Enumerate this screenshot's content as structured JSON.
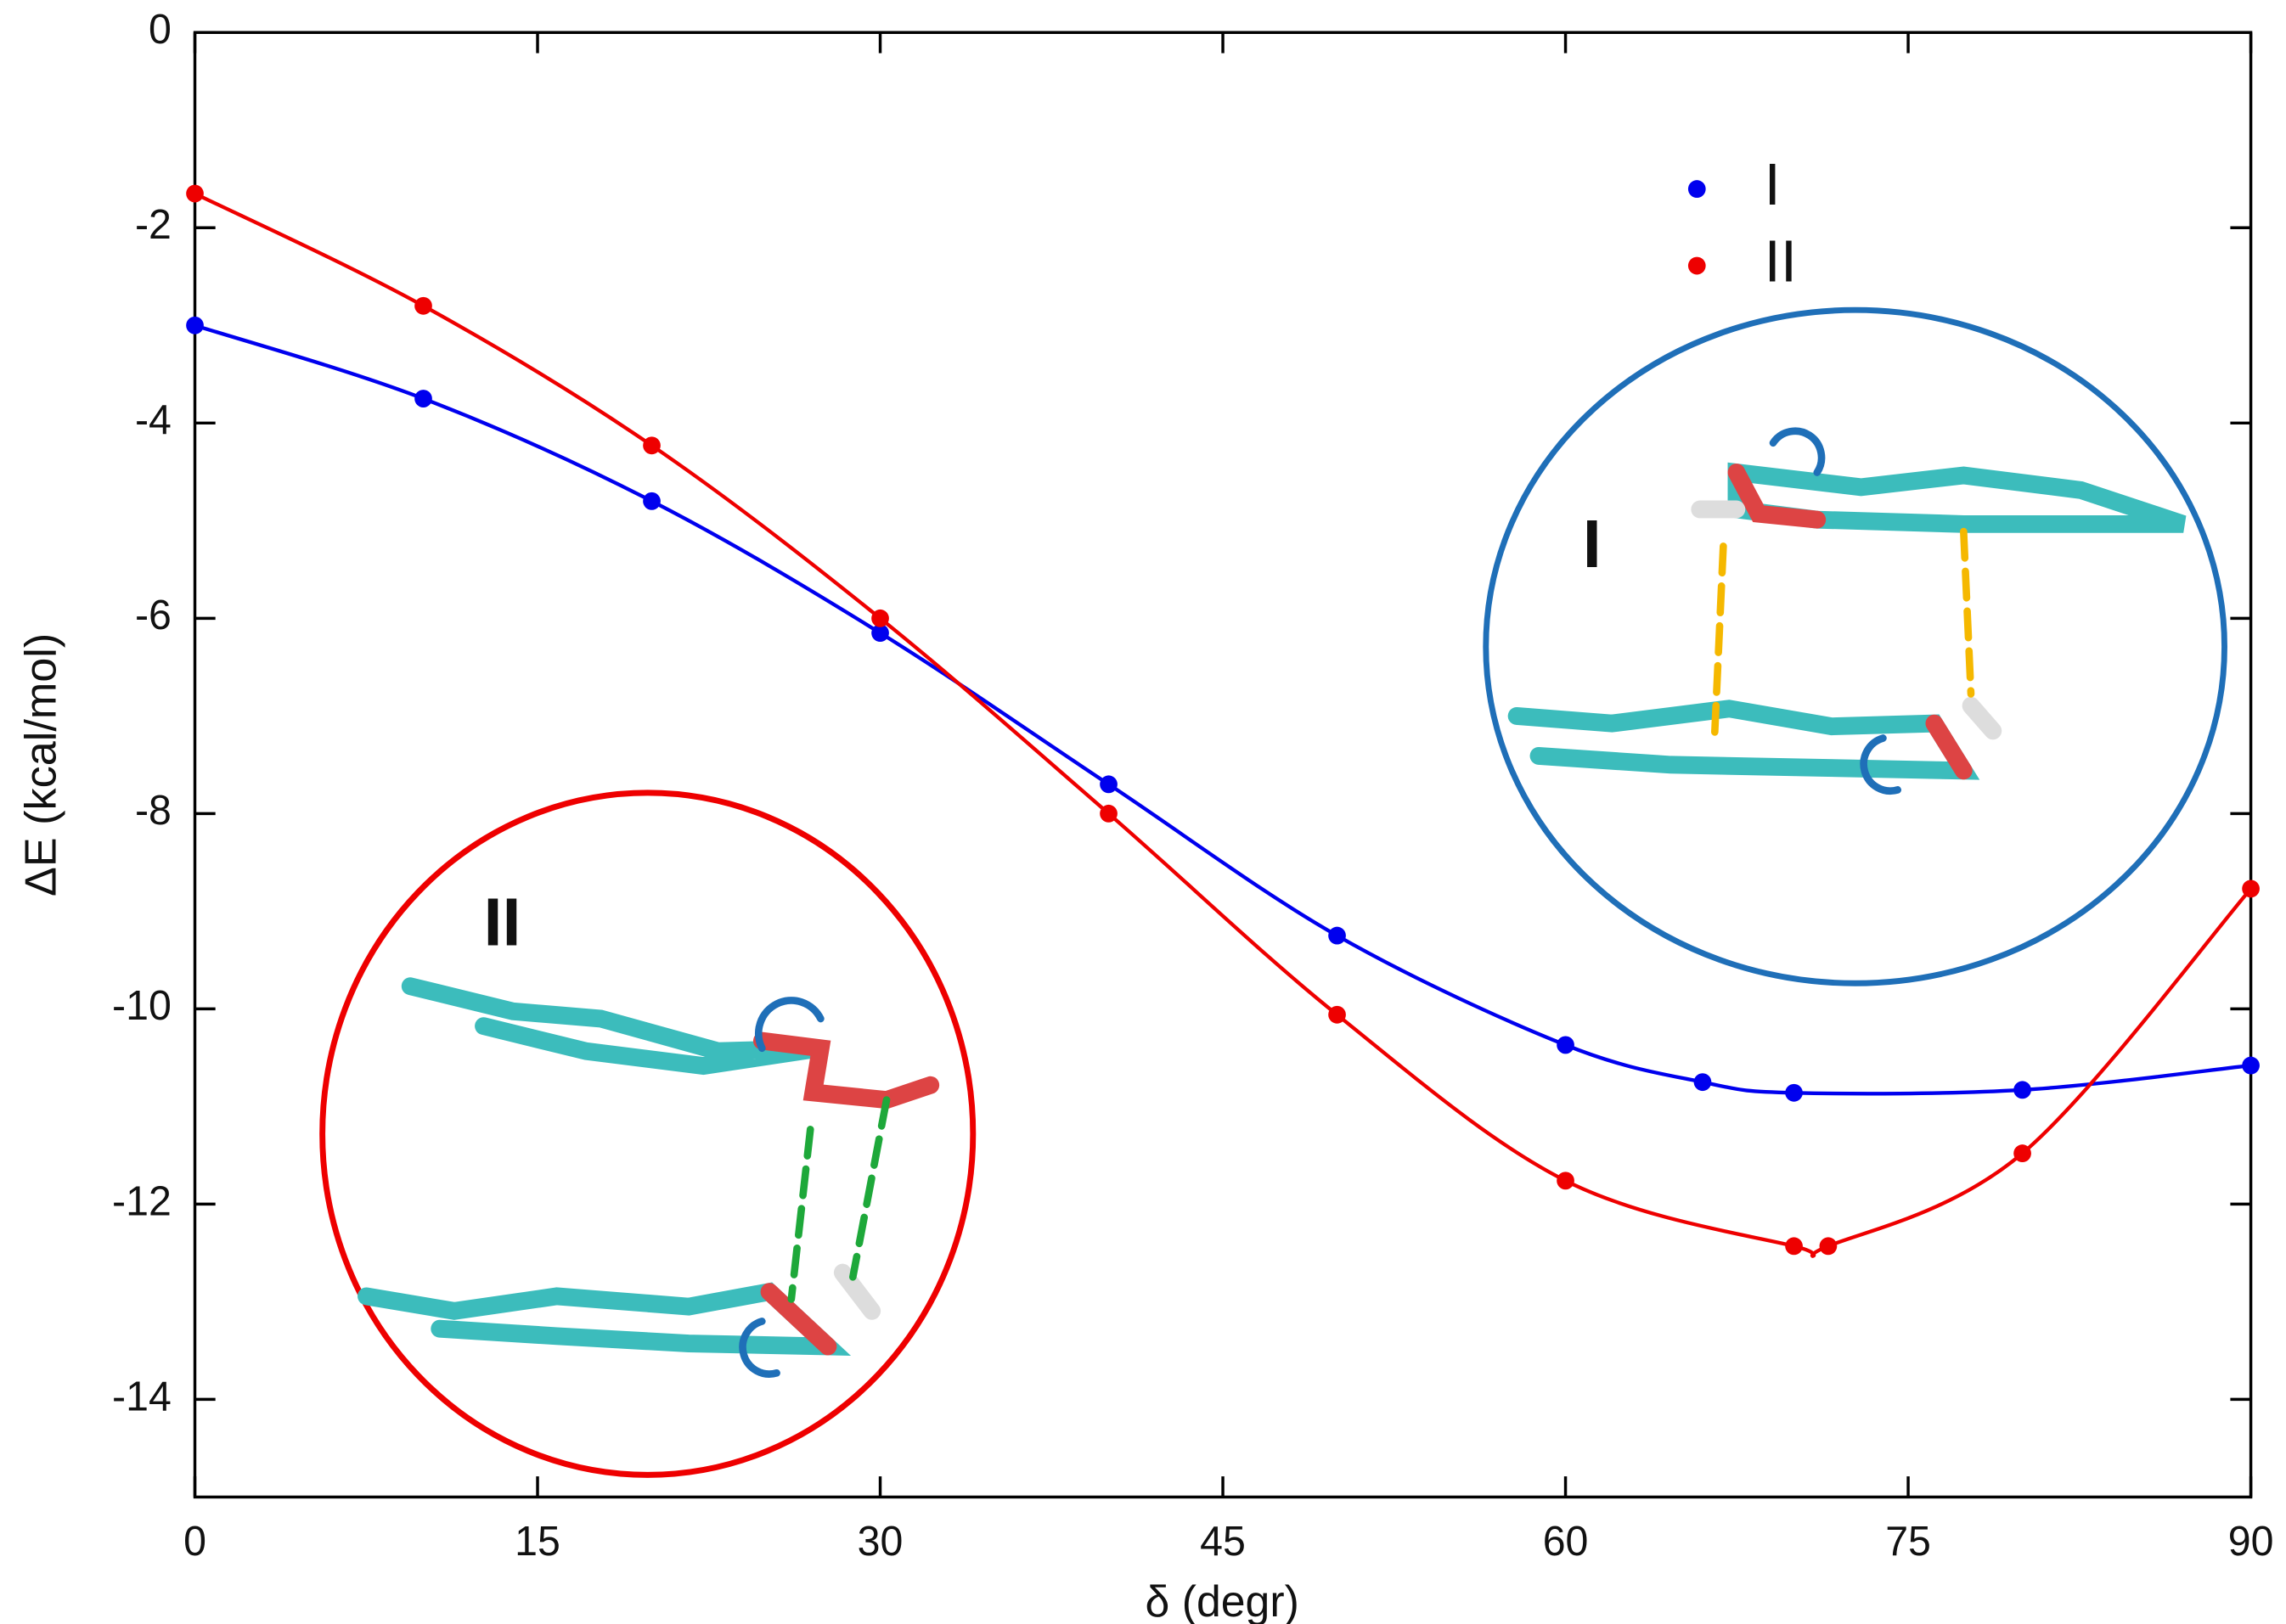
{
  "chart_data": {
    "type": "line",
    "x_label": "δ (degr)",
    "y_label": "ΔE (kcal/mol)",
    "series": [
      {
        "name": "I",
        "color": "#0000ee",
        "x": [
          0,
          10,
          20,
          30,
          40,
          50,
          60,
          66,
          70,
          80,
          90
        ],
        "values": [
          -3.0,
          -3.75,
          -4.8,
          -6.15,
          -7.7,
          -9.25,
          -10.37,
          -10.75,
          -10.86,
          -10.83,
          -10.58
        ]
      },
      {
        "name": "II",
        "color": "#ee0000",
        "x": [
          0,
          10,
          20,
          30,
          40,
          50,
          60,
          70,
          71.5,
          80,
          90
        ],
        "values": [
          -1.65,
          -2.8,
          -4.23,
          -6.0,
          -8.0,
          -10.06,
          -11.76,
          -12.43,
          -12.43,
          -11.48,
          -8.77
        ]
      }
    ],
    "xlim": [
      0,
      90
    ],
    "xticks": [
      0,
      15,
      30,
      45,
      60,
      75,
      90
    ],
    "ylim": [
      -15,
      0
    ],
    "yticks": [
      0,
      -2,
      -4,
      -6,
      -8,
      -10,
      -12,
      -14
    ],
    "legend": "upper-right",
    "annotations": [
      "I",
      "II"
    ]
  }
}
